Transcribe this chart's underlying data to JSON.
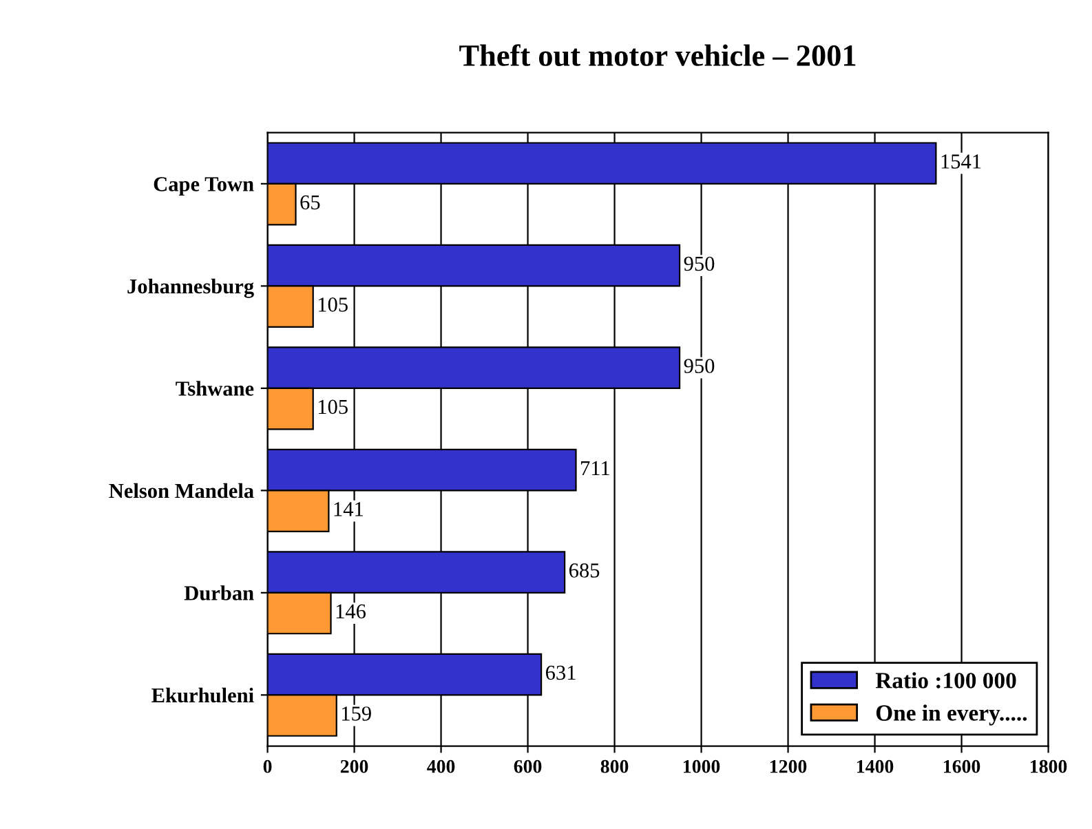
{
  "chart_data": {
    "type": "bar",
    "orientation": "horizontal",
    "title": "Theft out motor vehicle – 2001",
    "categories": [
      "Cape Town",
      "Johannesburg",
      "Tshwane",
      "Nelson Mandela",
      "Durban",
      "Ekurhuleni"
    ],
    "series": [
      {
        "name": "Ratio :100 000",
        "color": "#3333cc",
        "values": [
          1541,
          950,
          950,
          711,
          685,
          631
        ]
      },
      {
        "name": "One in every.....",
        "color": "#ff9933",
        "values": [
          65,
          105,
          105,
          141,
          146,
          159
        ]
      }
    ],
    "xlim": [
      0,
      1800
    ],
    "xticks": [
      0,
      200,
      400,
      600,
      800,
      1000,
      1200,
      1400,
      1600,
      1800
    ],
    "grid": "x",
    "legend": "bottom right",
    "data_labels": true
  }
}
